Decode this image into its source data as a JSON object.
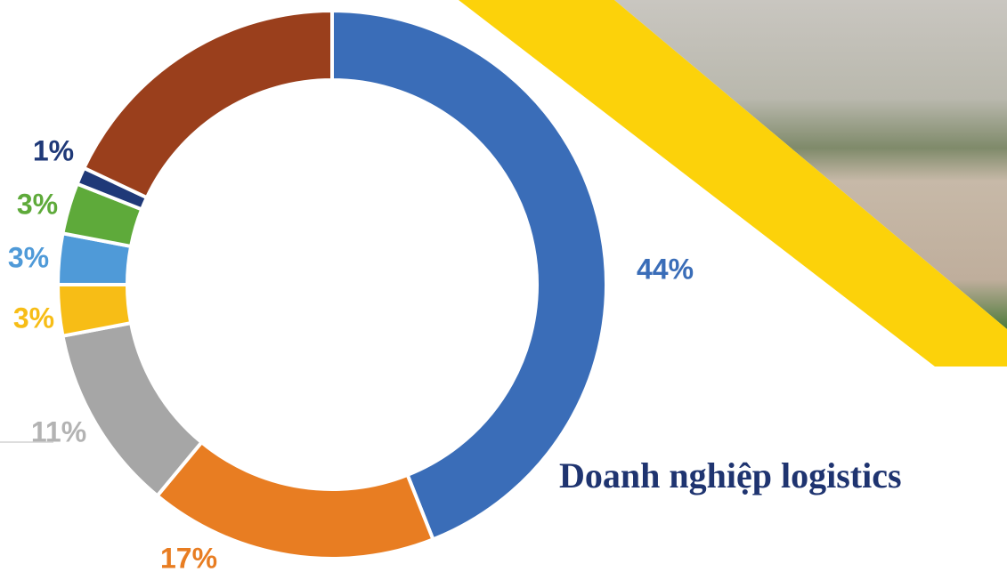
{
  "chart_data": {
    "type": "donut",
    "title": "Doanh nghiệp logistics",
    "values": [
      44,
      17,
      11,
      3,
      3,
      3,
      1,
      18
    ],
    "value_labels": [
      "44%",
      "17%",
      "11%",
      "3%",
      "3%",
      "3%",
      "1%",
      null
    ],
    "colors": [
      "#3a6db8",
      "#e87d22",
      "#a6a6a6",
      "#f7bd16",
      "#4f9ad8",
      "#5eaa3a",
      "#1f3978",
      "#9a3f1c"
    ],
    "label_colors": [
      "#3a6db8",
      "#e87d22",
      "#b3b3b3",
      "#f7bd16",
      "#4f9ad8",
      "#5eaa3a",
      "#1f3978",
      "#9a3f1c"
    ]
  }
}
